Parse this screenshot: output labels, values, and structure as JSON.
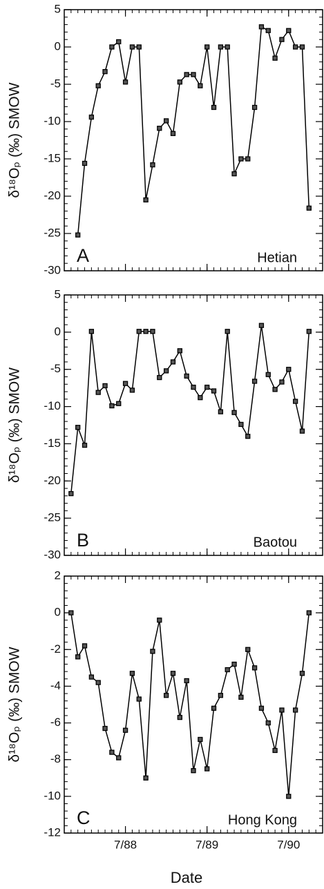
{
  "chart_data": [
    {
      "type": "line",
      "ylabel": "δ¹⁸Oₚ (‰) SMOW",
      "panel_label": "A",
      "annotation": "Hetian",
      "xlim": [
        "1987-10",
        "1990-12"
      ],
      "ylim": [
        -30,
        5
      ],
      "yticks": [
        5,
        0,
        -5,
        -10,
        -15,
        -20,
        -25,
        -30
      ],
      "x": [
        "1987-12",
        "1988-01",
        "1988-02",
        "1988-03",
        "1988-04",
        "1988-05",
        "1988-06",
        "1988-07",
        "1988-08",
        "1988-09",
        "1988-10",
        "1988-11",
        "1988-12",
        "1989-01",
        "1989-02",
        "1989-03",
        "1989-04",
        "1989-05",
        "1989-06",
        "1989-07",
        "1989-08",
        "1989-09",
        "1989-10",
        "1989-11",
        "1989-12",
        "1990-01",
        "1990-02",
        "1990-03",
        "1990-04",
        "1990-05",
        "1990-06",
        "1990-07",
        "1990-08",
        "1990-09",
        "1990-10"
      ],
      "series": [
        {
          "color": "#000000",
          "values": [
            -25.2,
            -15.6,
            -9.4,
            -5.2,
            -3.3,
            0,
            0.7,
            -4.7,
            0,
            0,
            -20.5,
            -15.8,
            -10.9,
            -9.9,
            -11.6,
            -4.7,
            -3.7,
            -3.7,
            -5.2,
            0,
            -8.1,
            0,
            0,
            -17,
            -15,
            -15,
            -8.1,
            2.7,
            2.2,
            -1.5,
            1,
            2.2,
            0,
            0,
            -21.6
          ]
        }
      ]
    },
    {
      "type": "line",
      "ylabel": "δ¹⁸Oₚ (‰) SMOW",
      "panel_label": "B",
      "annotation": "Baotou",
      "xlim": [
        "1987-10",
        "1990-12"
      ],
      "ylim": [
        -30,
        5
      ],
      "yticks": [
        5,
        0,
        -5,
        -10,
        -15,
        -20,
        -25,
        -30
      ],
      "x": [
        "1987-11",
        "1987-12",
        "1988-01",
        "1988-02",
        "1988-03",
        "1988-04",
        "1988-05",
        "1988-06",
        "1988-07",
        "1988-08",
        "1988-09",
        "1988-10",
        "1988-11",
        "1988-12",
        "1989-01",
        "1989-02",
        "1989-03",
        "1989-04",
        "1989-05",
        "1989-06",
        "1989-07",
        "1989-08",
        "1989-09",
        "1989-10",
        "1989-11",
        "1989-12",
        "1990-01",
        "1990-02",
        "1990-03",
        "1990-04",
        "1990-05",
        "1990-06",
        "1990-07",
        "1990-08",
        "1990-09",
        "1990-10"
      ],
      "series": [
        {
          "color": "#000000",
          "values": [
            -21.7,
            -12.8,
            -15.2,
            0.1,
            -8.1,
            -7.2,
            -9.9,
            -9.6,
            -6.9,
            -7.8,
            0.1,
            0.1,
            0.1,
            -6.1,
            -5.2,
            -4,
            -2.5,
            -5.9,
            -7.4,
            -8.8,
            -7.4,
            -7.9,
            -10.7,
            0.1,
            -10.8,
            -12.4,
            -14,
            -6.6,
            0.9,
            -5.7,
            -7.7,
            -6.7,
            -5,
            -9.3,
            -13.3,
            0.1
          ]
        }
      ]
    },
    {
      "type": "line",
      "ylabel": "δ¹⁸Oₚ (‰) SMOW",
      "panel_label": "C",
      "annotation": "Hong Kong",
      "xlabel": "Date",
      "xlim": [
        "1987-10",
        "1990-12"
      ],
      "ylim": [
        -12,
        2
      ],
      "yticks": [
        2,
        0,
        -2,
        -4,
        -6,
        -8,
        -10,
        -12
      ],
      "xticks": [
        {
          "value": "1988-07",
          "label": "7/88"
        },
        {
          "value": "1989-07",
          "label": "7/89"
        },
        {
          "value": "1990-07",
          "label": "7/90"
        }
      ],
      "x": [
        "1987-11",
        "1987-12",
        "1988-01",
        "1988-02",
        "1988-03",
        "1988-04",
        "1988-05",
        "1988-06",
        "1988-07",
        "1988-08",
        "1988-09",
        "1988-10",
        "1988-11",
        "1988-12",
        "1989-01",
        "1989-02",
        "1989-03",
        "1989-04",
        "1989-05",
        "1989-06",
        "1989-07",
        "1989-08",
        "1989-09",
        "1989-10",
        "1989-11",
        "1989-12",
        "1990-01",
        "1990-02",
        "1990-03",
        "1990-04",
        "1990-05",
        "1990-06",
        "1990-07",
        "1990-08",
        "1990-09",
        "1990-10"
      ],
      "series": [
        {
          "color": "#000000",
          "values": [
            0,
            -2.4,
            -1.8,
            -3.5,
            -3.8,
            -6.3,
            -7.6,
            -7.9,
            -6.4,
            -3.3,
            -4.7,
            -9,
            -2.1,
            -0.4,
            -4.5,
            -3.3,
            -5.7,
            -3.7,
            -8.6,
            -6.9,
            -8.5,
            -5.2,
            -4.5,
            -3.1,
            -2.8,
            -4.6,
            -2,
            -3,
            -5.2,
            -6,
            -7.5,
            -5.3,
            -10,
            -5.3,
            -3.3,
            0
          ]
        }
      ]
    }
  ]
}
